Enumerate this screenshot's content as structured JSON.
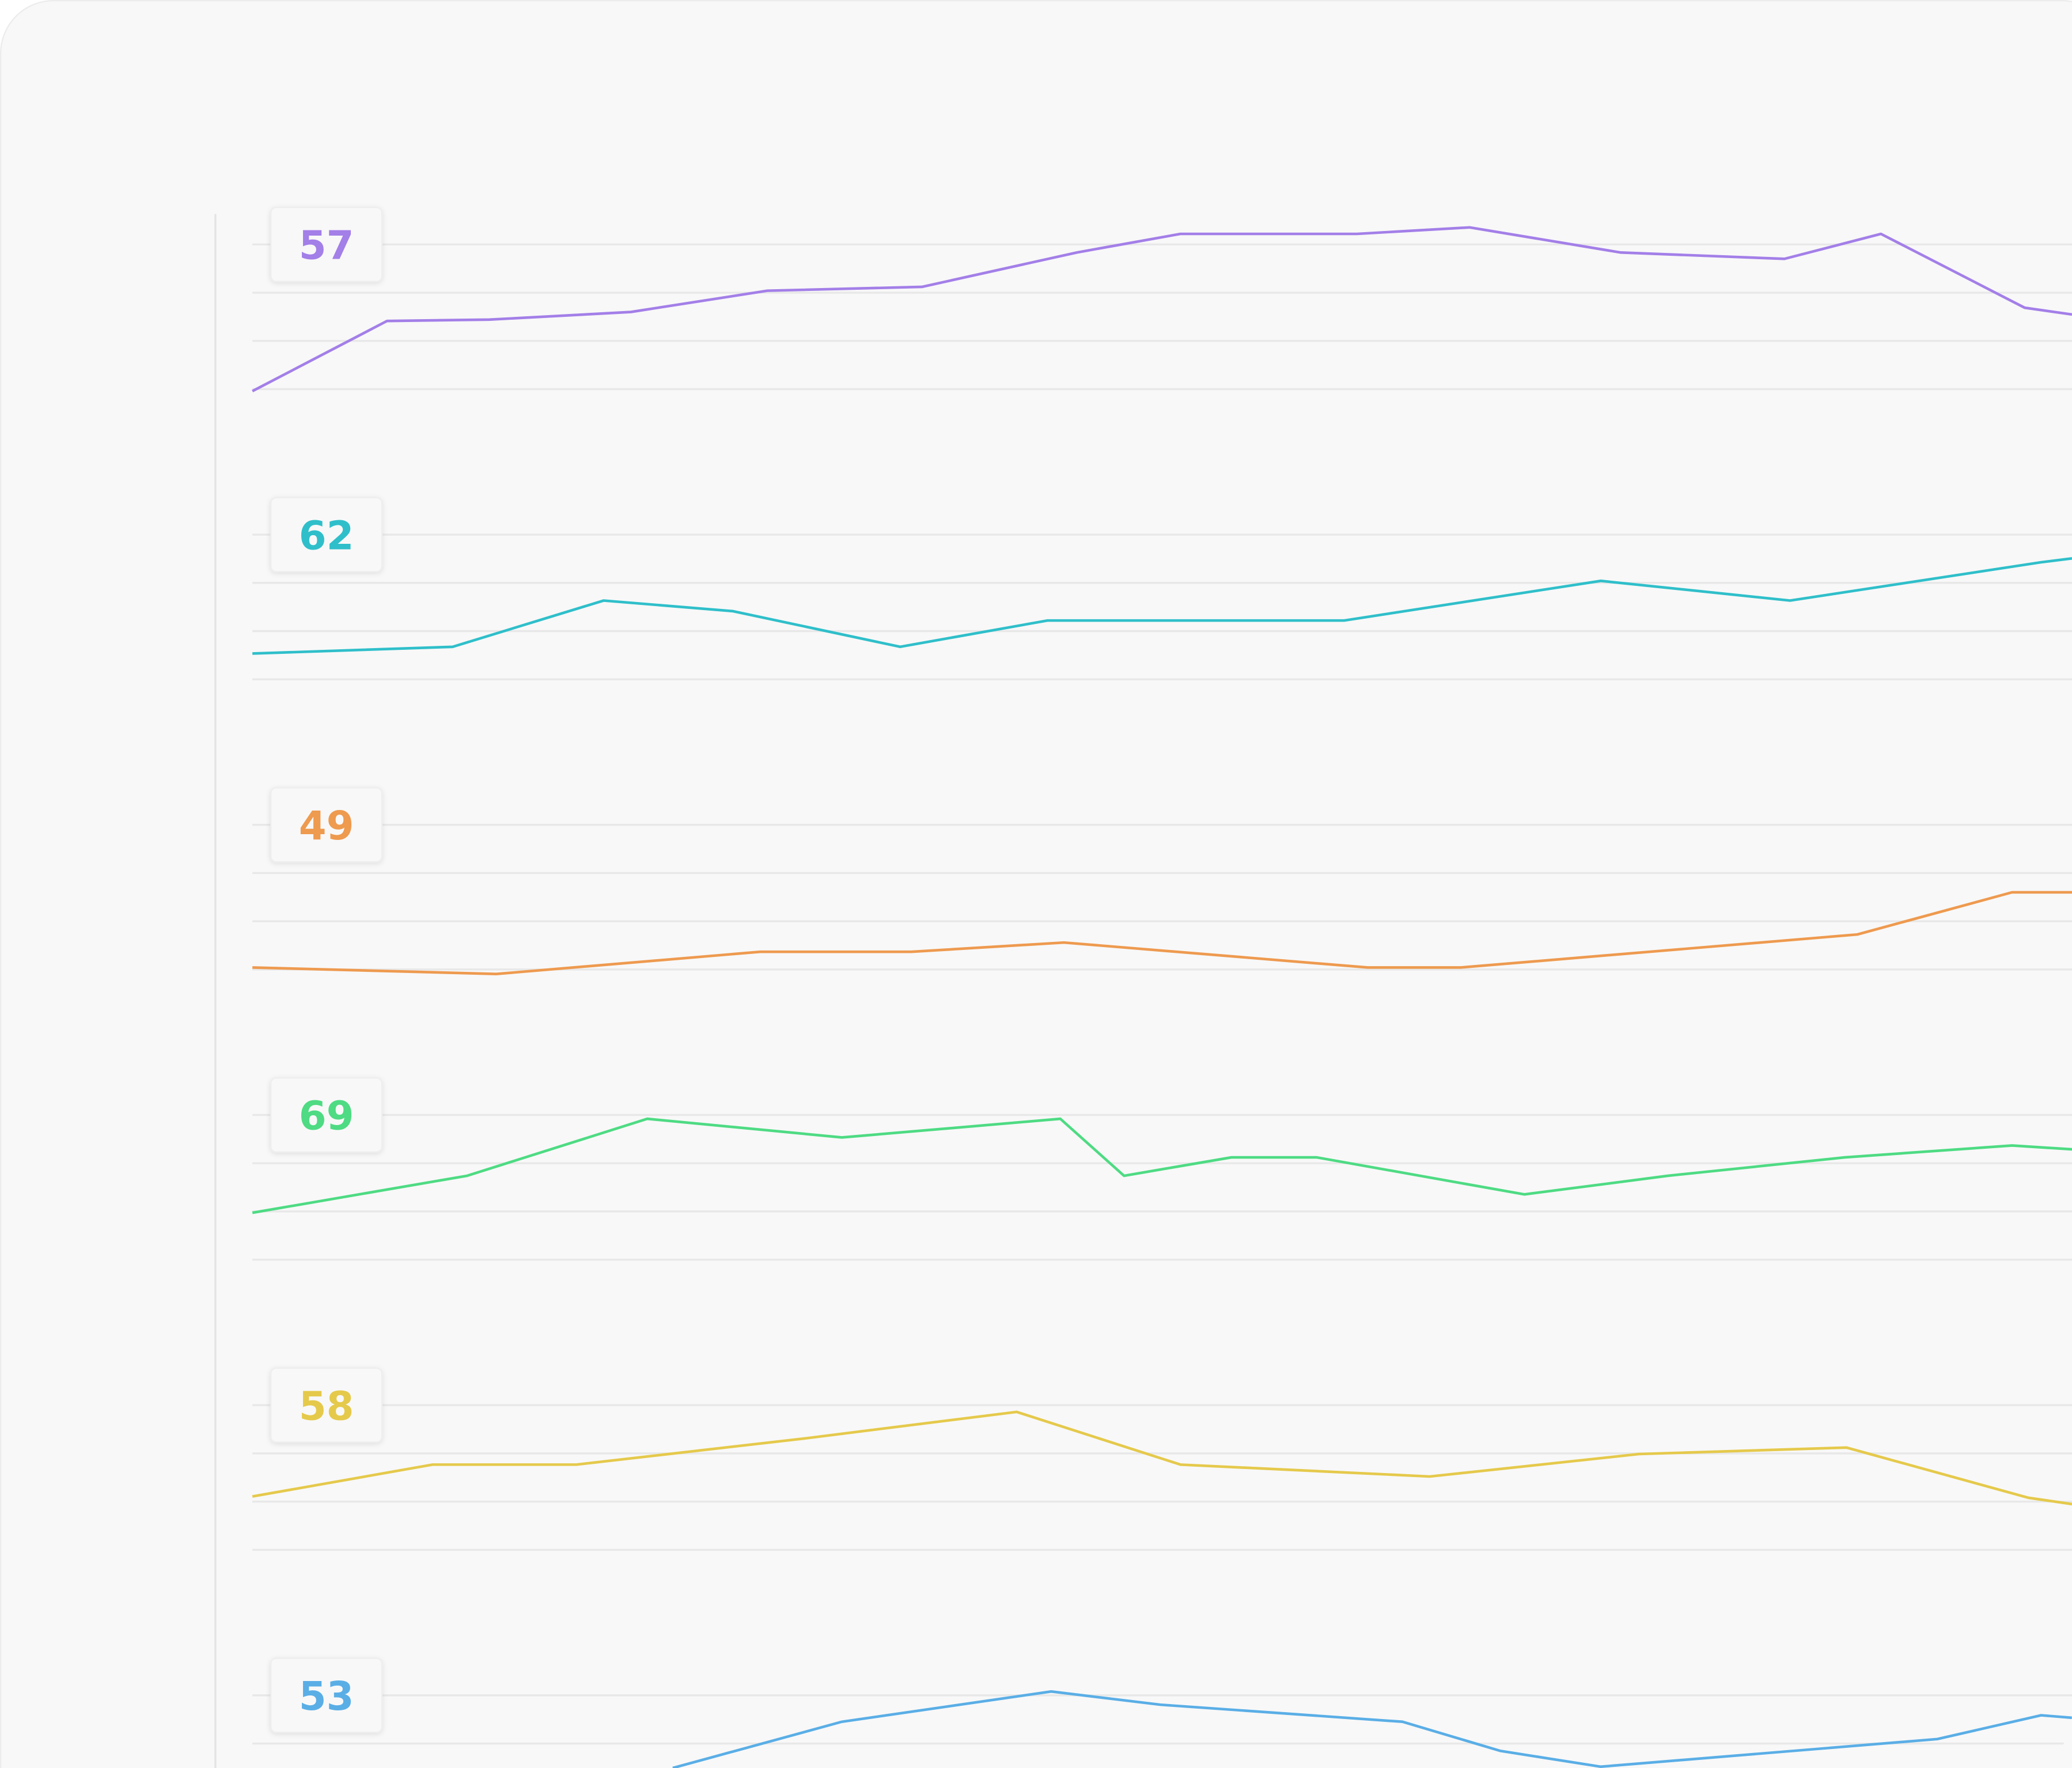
{
  "chart_data": [
    {
      "type": "line",
      "badge": 57,
      "color": "#a37fe8",
      "xlim": [
        0,
        100
      ],
      "ylim": [
        0,
        75
      ],
      "yticks": [
        15,
        30,
        45,
        60
      ],
      "grid": true,
      "x": [
        0,
        7.4,
        13,
        20.8,
        28.3,
        36.8,
        45.3,
        51,
        60.7,
        66.9,
        75.2,
        84.2,
        89.5,
        97.4,
        100
      ],
      "values": [
        14.4,
        36.2,
        36.6,
        39.0,
        45.6,
        46.8,
        57.5,
        63.3,
        63.3,
        65.3,
        57.5,
        55.5,
        63.3,
        40.3,
        38.2
      ]
    },
    {
      "type": "line",
      "badge": 62,
      "color": "#2fbfca",
      "xlim": [
        0,
        100
      ],
      "ylim": [
        0,
        75
      ],
      "yticks": [
        15,
        30,
        45,
        60
      ],
      "grid": true,
      "x": [
        0,
        11.0,
        19.3,
        26.4,
        35.6,
        43.7,
        60.0,
        74.1,
        84.5,
        98.3,
        100
      ],
      "values": [
        23.0,
        25.1,
        39.5,
        36.2,
        25.1,
        33.3,
        33.3,
        45.6,
        39.5,
        51.4,
        52.6
      ]
    },
    {
      "type": "line",
      "badge": 49,
      "color": "#ee9a4f",
      "xlim": [
        0,
        100
      ],
      "ylim": [
        0,
        75
      ],
      "yticks": [
        15,
        30,
        45,
        60
      ],
      "grid": true,
      "x": [
        0,
        13.4,
        27.9,
        36.2,
        44.6,
        61.3,
        66.4,
        88.2,
        96.7,
        100
      ],
      "values": [
        15.6,
        13.6,
        20.5,
        20.5,
        23.4,
        15.6,
        15.6,
        25.9,
        39.0,
        39.0
      ]
    },
    {
      "type": "line",
      "badge": 69,
      "color": "#4edb83",
      "xlim": [
        0,
        100
      ],
      "ylim": [
        0,
        75
      ],
      "yticks": [
        15,
        30,
        45,
        60
      ],
      "grid": true,
      "x": [
        0,
        11.8,
        21.7,
        32.4,
        44.4,
        47.9,
        53.8,
        58.5,
        69.9,
        77.8,
        87.5,
        96.7,
        100
      ],
      "values": [
        29.6,
        41.1,
        58.8,
        53.0,
        58.8,
        41.1,
        46.8,
        46.8,
        35.3,
        41.1,
        46.8,
        50.5,
        49.3
      ]
    },
    {
      "type": "line",
      "badge": 58,
      "color": "#e5c94b",
      "xlim": [
        0,
        100
      ],
      "ylim": [
        0,
        75
      ],
      "yticks": [
        15,
        30,
        45,
        60
      ],
      "grid": true,
      "x": [
        0,
        9.9,
        17.8,
        30.4,
        42.0,
        51.0,
        64.7,
        76.2,
        87.6,
        97.6,
        100
      ],
      "values": [
        31.6,
        41.5,
        41.5,
        49.7,
        57.9,
        41.5,
        37.8,
        44.8,
        46.8,
        31.2,
        29.2
      ]
    },
    {
      "type": "line",
      "badge": 53,
      "color": "#5aaee6",
      "xlim": [
        0,
        100
      ],
      "ylim": [
        0,
        75
      ],
      "yticks": [
        15,
        30,
        45,
        60
      ],
      "grid": true,
      "x": [
        23.1,
        32.4,
        43.9,
        49.9,
        63.2,
        68.6,
        74.1,
        92.6,
        98.3,
        100
      ],
      "values": [
        37.4,
        51.8,
        61.2,
        57.1,
        51.8,
        42.7,
        37.8,
        46.4,
        53.8,
        53.0
      ]
    }
  ]
}
